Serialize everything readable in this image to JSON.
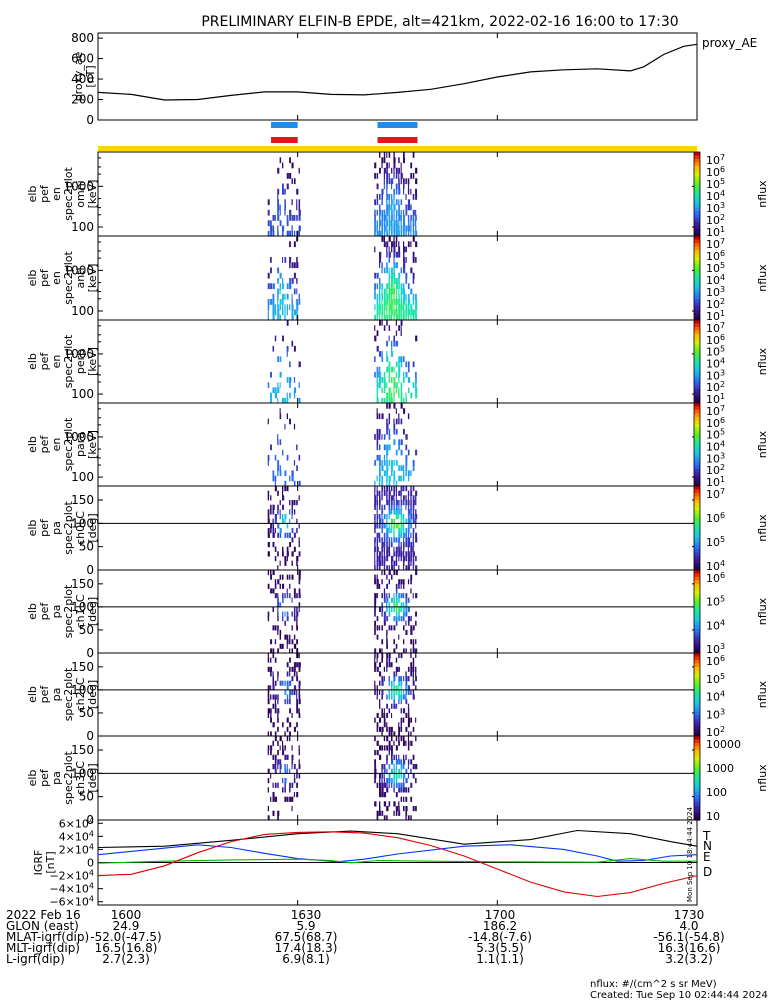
{
  "title": "PRELIMINARY ELFIN-B EPDE, alt=421km, 2022-02-16 16:00 to 17:30",
  "created": "Created: Tue Sep 10 02:44:44 2024",
  "units_note": "nflux: #/(cm^2 s sr MeV)",
  "side_stamp": "Mon Sep 10 18:44:44 2024",
  "colors": {
    "black": "#000000",
    "blue": "#0033ff",
    "red": "#dd0000",
    "green": "#00bb00",
    "bar_blue": "#1b8df5",
    "bar_red": "#e3161c",
    "bar_yellow": "#ffd400"
  },
  "chart_data": [
    {
      "type": "line",
      "name": "proxy_ae",
      "legend": "proxy_AE",
      "ylabel_lines": [
        "proxy_ae",
        "[nT]"
      ],
      "yticks": [
        "800",
        "600",
        "400",
        "200",
        "0"
      ],
      "ylim": [
        0,
        850
      ],
      "xlim": [
        0,
        90
      ],
      "x": [
        0,
        5,
        10,
        15,
        20,
        25,
        30,
        35,
        40,
        45,
        50,
        55,
        60,
        65,
        70,
        75,
        80,
        82,
        85,
        88,
        90
      ],
      "y": [
        270,
        250,
        195,
        200,
        240,
        275,
        275,
        250,
        245,
        270,
        300,
        355,
        420,
        470,
        490,
        500,
        480,
        520,
        640,
        720,
        740
      ]
    },
    {
      "type": "bar",
      "name": "science-zone-bars",
      "rows": [
        {
          "color": "blue",
          "ranges": [
            [
              26.0,
              30.0
            ],
            [
              42.0,
              48.0
            ]
          ]
        },
        {
          "color": "red",
          "ranges": [
            [
              26.0,
              30.0
            ],
            [
              42.0,
              48.0
            ]
          ]
        },
        {
          "color": "yellow",
          "ranges": [
            [
              0,
              90
            ]
          ]
        }
      ]
    },
    {
      "type": "heatmap",
      "name": "omni-energy",
      "ylabel_lines": [
        "elb",
        "pef",
        "en",
        "spec2plot",
        "omni",
        "[keV]"
      ],
      "yticks": [
        "1000",
        "100"
      ],
      "ylog": true,
      "ylim": [
        60,
        7000
      ],
      "zticks": [
        "10^7",
        "10^6",
        "10^5",
        "10^4",
        "10^3",
        "10^2",
        "10^1"
      ],
      "zlabel": "nflux",
      "intervals": [
        [
          25.5,
          30.5
        ],
        [
          41.5,
          48.0
        ]
      ]
    },
    {
      "type": "heatmap",
      "name": "anti-energy",
      "ylabel_lines": [
        "elb",
        "pef",
        "en",
        "spec2plot",
        "anti",
        "[keV]"
      ],
      "yticks": [
        "1000",
        "100"
      ],
      "ylog": true,
      "ylim": [
        60,
        7000
      ],
      "zticks": [
        "10^7",
        "10^6",
        "10^5",
        "10^4",
        "10^3",
        "10^2",
        "10^1"
      ],
      "zlabel": "nflux",
      "intervals": [
        [
          25.5,
          30.5
        ],
        [
          41.5,
          48.0
        ]
      ]
    },
    {
      "type": "heatmap",
      "name": "perp-energy",
      "ylabel_lines": [
        "elb",
        "pef",
        "en",
        "spec2plot",
        "perp",
        "[keV]"
      ],
      "yticks": [
        "1000",
        "100"
      ],
      "ylog": true,
      "ylim": [
        60,
        7000
      ],
      "zticks": [
        "10^7",
        "10^6",
        "10^5",
        "10^4",
        "10^3",
        "10^2",
        "10^1"
      ],
      "zlabel": "nflux",
      "intervals": [
        [
          25.5,
          30.5
        ],
        [
          41.5,
          48.0
        ]
      ]
    },
    {
      "type": "heatmap",
      "name": "para-energy",
      "ylabel_lines": [
        "elb",
        "pef",
        "en",
        "spec2plot",
        "para",
        "[keV]"
      ],
      "yticks": [
        "1000",
        "100"
      ],
      "ylog": true,
      "ylim": [
        60,
        7000
      ],
      "zticks": [
        "10^7",
        "10^6",
        "10^5",
        "10^4",
        "10^3",
        "10^2",
        "10^1"
      ],
      "zlabel": "nflux",
      "intervals": [
        [
          25.5,
          30.5
        ],
        [
          41.5,
          48.0
        ]
      ]
    },
    {
      "type": "heatmap",
      "name": "pa-ch0LC",
      "ylabel_lines": [
        "elb",
        "pef",
        "pa",
        "spec2plot",
        "ch0LC",
        "[deg]"
      ],
      "yticks": [
        "150",
        "100",
        "50",
        "0"
      ],
      "ylim": [
        0,
        180
      ],
      "zticks": [
        "10^7",
        "10^6",
        "10^5",
        "10^4"
      ],
      "zlabel": "nflux",
      "intervals": [
        [
          25.5,
          30.5
        ],
        [
          41.5,
          48.0
        ]
      ]
    },
    {
      "type": "heatmap",
      "name": "pa-ch1LC",
      "ylabel_lines": [
        "elb",
        "pef",
        "pa",
        "spec2plot",
        "ch1LC",
        "[deg]"
      ],
      "yticks": [
        "150",
        "100",
        "50",
        "0"
      ],
      "ylim": [
        0,
        180
      ],
      "zticks": [
        "10^6",
        "10^5",
        "10^4",
        "10^3"
      ],
      "zlabel": "nflux",
      "intervals": [
        [
          25.5,
          30.5
        ],
        [
          41.5,
          48.0
        ]
      ]
    },
    {
      "type": "heatmap",
      "name": "pa-ch2LC",
      "ylabel_lines": [
        "elb",
        "pef",
        "pa",
        "spec2plot",
        "ch2LC",
        "[deg]"
      ],
      "yticks": [
        "150",
        "100",
        "50",
        "0"
      ],
      "ylim": [
        0,
        180
      ],
      "zticks": [
        "10^6",
        "10^5",
        "10^4",
        "10^3",
        "10^2"
      ],
      "zlabel": "nflux",
      "intervals": [
        [
          25.5,
          30.5
        ],
        [
          41.5,
          48.0
        ]
      ]
    },
    {
      "type": "heatmap",
      "name": "pa-ch3LC",
      "ylabel_lines": [
        "elb",
        "pef",
        "pa",
        "spec2plot",
        "ch3LC",
        "[deg]"
      ],
      "yticks": [
        "150",
        "100",
        "50",
        "0"
      ],
      "ylim": [
        0,
        180
      ],
      "zticks": [
        "10000",
        "1000",
        "100",
        "10"
      ],
      "zlabel": "nflux",
      "intervals": [
        [
          25.5,
          30.5
        ],
        [
          41.5,
          48.0
        ]
      ]
    },
    {
      "type": "line",
      "name": "igrf",
      "ylabel_lines": [
        "IGRF",
        "[nT]"
      ],
      "yticks": [
        "6×10^4",
        "4×10^4",
        "2×10^4",
        "0",
        "−2×10^4",
        "−4×10^4",
        "−6×10^4"
      ],
      "ylim": [
        -65000,
        65000
      ],
      "xlim": [
        0,
        90
      ],
      "series": [
        {
          "name": "T",
          "color": "black",
          "x": [
            0,
            10,
            20,
            30,
            38,
            45,
            55,
            65,
            72,
            80,
            86,
            90
          ],
          "y": [
            23000,
            25000,
            34000,
            44000,
            48000,
            44000,
            28000,
            35000,
            49000,
            44000,
            32000,
            25000
          ]
        },
        {
          "name": "N",
          "color": "blue",
          "x": [
            0,
            8,
            15,
            20,
            25,
            30,
            36,
            40,
            45,
            55,
            62,
            70,
            75,
            78,
            82,
            86,
            90
          ],
          "y": [
            12000,
            20000,
            27000,
            23000,
            14000,
            6000,
            1000,
            5000,
            13000,
            25000,
            27000,
            20000,
            10000,
            2000,
            3000,
            10000,
            12000
          ]
        },
        {
          "name": "E",
          "color": "green",
          "x": [
            0,
            10,
            20,
            30,
            35,
            38,
            42,
            50,
            60,
            75,
            80,
            85,
            90
          ],
          "y": [
            -1000,
            2000,
            4000,
            5000,
            3000,
            -500,
            3000,
            2000,
            1000,
            500,
            6000,
            2000,
            2000
          ]
        },
        {
          "name": "D",
          "color": "red",
          "x": [
            0,
            5,
            10,
            15,
            20,
            25,
            30,
            35,
            40,
            45,
            50,
            55,
            60,
            65,
            70,
            75,
            80,
            85,
            90
          ],
          "y": [
            -20000,
            -18000,
            -5000,
            15000,
            32000,
            43000,
            46000,
            47000,
            45000,
            38000,
            26000,
            10000,
            -10000,
            -30000,
            -45000,
            -52000,
            -46000,
            -32000,
            -20000
          ]
        }
      ]
    }
  ],
  "xticks": [
    "1630",
    "1700",
    "1730"
  ],
  "xtick_pos": [
    30,
    60,
    90
  ],
  "footer": {
    "rows": [
      {
        "label": "2022 Feb 16",
        "v0": "1600",
        "v1": "1630",
        "v2": "1700",
        "v3": "1730"
      },
      {
        "label": "GLON (east)",
        "v0": "24.9",
        "v1": "5.9",
        "v2": "186.2",
        "v3": "4.0"
      },
      {
        "label": "MLAT-igrf(dip)",
        "v0": "-52.0(-47.5)",
        "v1": "67.5(68.7)",
        "v2": "-14.8(-7.6)",
        "v3": "-56.1(-54.8)"
      },
      {
        "label": "MLT-igrf(dip)",
        "v0": "16.5(16.8)",
        "v1": "17.4(18.3)",
        "v2": "5.3(5.5)",
        "v3": "16.3(16.6)"
      },
      {
        "label": "L-igrf(dip)",
        "v0": "2.7(2.3)",
        "v1": "6.9(8.1)",
        "v2": "1.1(1.1)",
        "v3": "3.2(3.2)"
      }
    ]
  }
}
